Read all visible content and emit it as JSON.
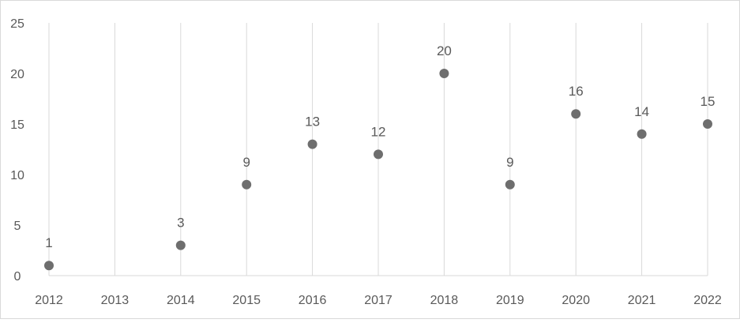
{
  "chart_data": {
    "type": "scatter",
    "x": [
      "2012",
      "2013",
      "2014",
      "2015",
      "2016",
      "2017",
      "2018",
      "2019",
      "2020",
      "2021",
      "2022"
    ],
    "series": [
      {
        "x": [
          "2012",
          "2014",
          "2015",
          "2016",
          "2017",
          "2018",
          "2019",
          "2020",
          "2021",
          "2022"
        ],
        "values": [
          1,
          3,
          9,
          13,
          12,
          20,
          9,
          16,
          14,
          15
        ],
        "data_labels": [
          "1",
          "3",
          "9",
          "13",
          "12",
          "20",
          "9",
          "16",
          "14",
          "15"
        ],
        "color": "#6e6e6e"
      }
    ],
    "ylim": [
      0,
      25
    ],
    "yticks": [
      0,
      5,
      10,
      15,
      20,
      25
    ],
    "ytick_labels": [
      "0",
      "5",
      "10",
      "15",
      "20",
      "25"
    ],
    "xtick_labels": [
      "2012",
      "2013",
      "2014",
      "2015",
      "2016",
      "2017",
      "2018",
      "2019",
      "2020",
      "2021",
      "2022"
    ],
    "grid": "vertical",
    "title": "",
    "xlabel": "",
    "ylabel": "",
    "legend": "none",
    "colors": {
      "marker": "#6e6e6e",
      "gridline": "#d9d9d9",
      "text": "#595959",
      "frame": "#d9d9d9"
    }
  }
}
